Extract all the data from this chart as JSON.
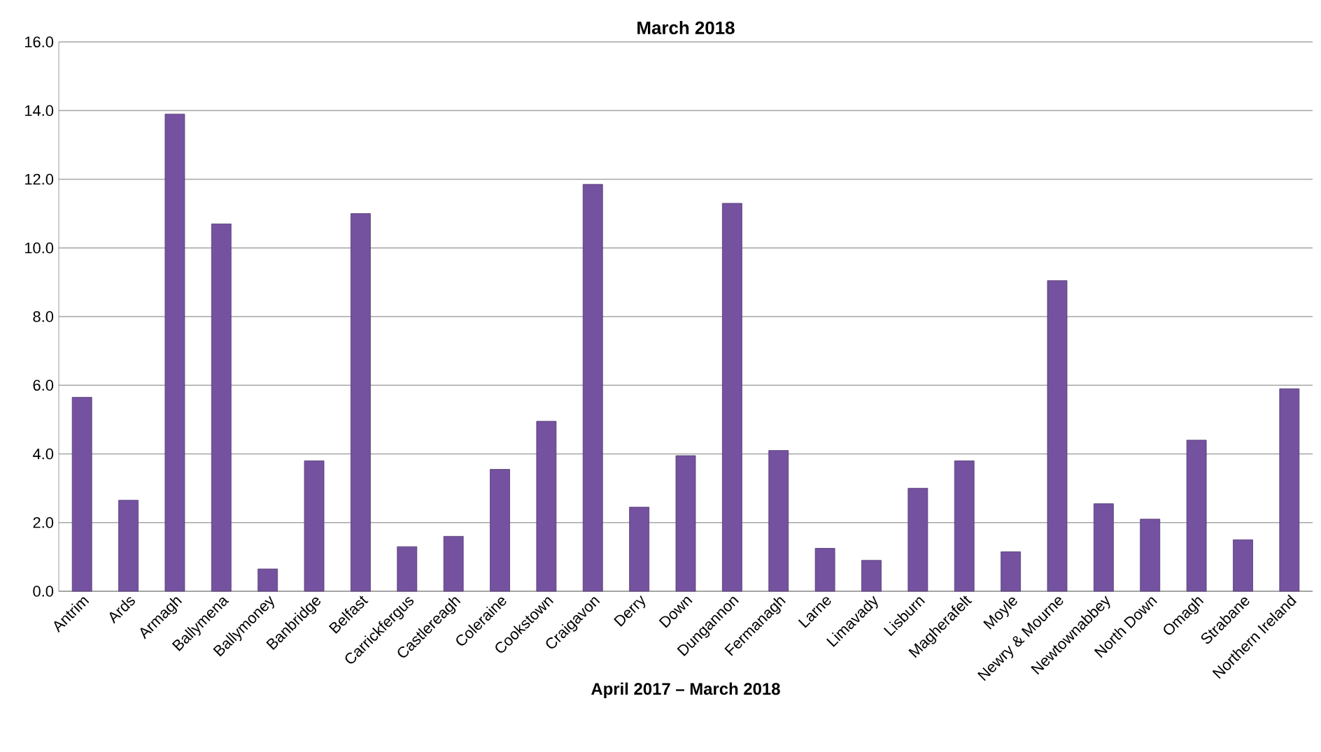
{
  "chart_data": {
    "type": "bar",
    "title": "March 2018",
    "xlabel": "April 2017 – March 2018",
    "categories": [
      "Antrim",
      "Ards",
      "Armagh",
      "Ballymena",
      "Ballymoney",
      "Banbridge",
      "Belfast",
      "Carrickfergus",
      "Castlereagh",
      "Coleraine",
      "Cookstown",
      "Craigavon",
      "Derry",
      "Down",
      "Dungannon",
      "Fermanagh",
      "Larne",
      "Limavady",
      "Lisburn",
      "Magherafelt",
      "Moyle",
      "Newry & Mourne",
      "Newtownabbey",
      "North Down",
      "Omagh",
      "Strabane",
      "Northern Ireland"
    ],
    "values": [
      5.65,
      2.65,
      13.9,
      10.7,
      0.65,
      3.8,
      11.0,
      1.3,
      1.6,
      3.55,
      4.95,
      11.85,
      2.45,
      3.95,
      11.3,
      4.1,
      1.25,
      0.9,
      3.0,
      3.8,
      1.15,
      9.05,
      2.55,
      2.1,
      4.4,
      1.5,
      5.9
    ],
    "color": "#7452a0",
    "ylim": [
      0,
      16
    ],
    "yticks": [
      {
        "value": 0,
        "label": "0.0"
      },
      {
        "value": 2,
        "label": "2.0"
      },
      {
        "value": 4,
        "label": "4.0"
      },
      {
        "value": 6,
        "label": "6.0"
      },
      {
        "value": 8,
        "label": "8.0"
      },
      {
        "value": 10,
        "label": "10.0"
      },
      {
        "value": 12,
        "label": "12.0"
      },
      {
        "value": 14,
        "label": "14.0"
      },
      {
        "value": 16,
        "label": "16.0"
      }
    ],
    "grid": "y"
  }
}
